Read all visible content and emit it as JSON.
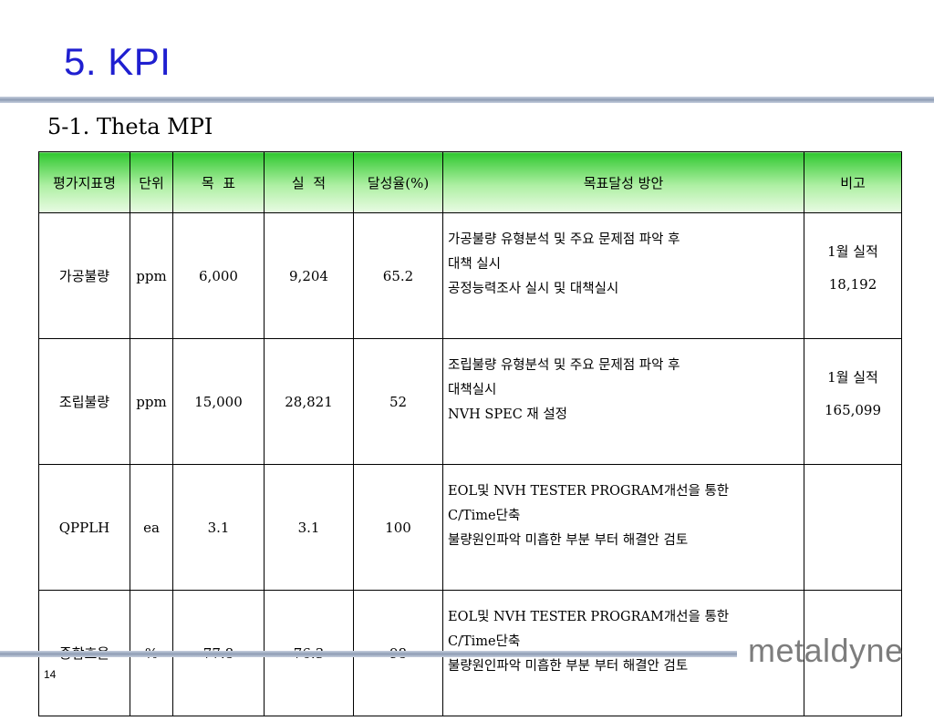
{
  "slide": {
    "title": "5. KPI",
    "subtitle": "5-1. Theta MPI",
    "page_number": "14",
    "logo_text": "metaldyne"
  },
  "table": {
    "headers": [
      "평가지표명",
      "단위",
      "목  표",
      "실  적",
      "달성율(%)",
      "목표달성 방안",
      "비고"
    ],
    "rows": [
      {
        "name": "가공불량",
        "unit": "ppm",
        "target": "6,000",
        "actual": "9,204",
        "rate": "65.2",
        "plan": [
          "가공불량 유형분석 및 주요 문제점 파악 후",
          "대책 실시",
          "공정능력조사 실시 및 대책실시"
        ],
        "remark": [
          "1월 실적",
          "18,192"
        ]
      },
      {
        "name": "조립불량",
        "unit": "ppm",
        "target": "15,000",
        "actual": "28,821",
        "rate": "52",
        "plan": [
          "조립불량 유형분석 및 주요 문제점 파악 후",
          "대책실시",
          "NVH SPEC 재 설정"
        ],
        "remark": [
          "1월 실적",
          "165,099"
        ]
      },
      {
        "name": "QPPLH",
        "unit": "ea",
        "target": "3.1",
        "actual": "3.1",
        "rate": "100",
        "plan": [
          "EOL및 NVH TESTER PROGRAM개선을 통한",
          "C/Time단축",
          "불량원인파악 미흡한 부분 부터 해결안 검토"
        ],
        "remark": [
          "",
          ""
        ]
      },
      {
        "name": "종합효율",
        "unit": "%",
        "target": "77.8",
        "actual": "76.3",
        "rate": "98",
        "plan": [
          "EOL및 NVH TESTER PROGRAM개선을 통한",
          "C/Time단축",
          "불량원인파악 미흡한 부분 부터 해결안 검토"
        ],
        "remark": [
          "",
          ""
        ]
      }
    ]
  },
  "colors": {
    "title": "#1f1fd0",
    "header_green": "#2fc82f",
    "rule": "#8e9cb4",
    "logo": "#7d7d7d"
  }
}
